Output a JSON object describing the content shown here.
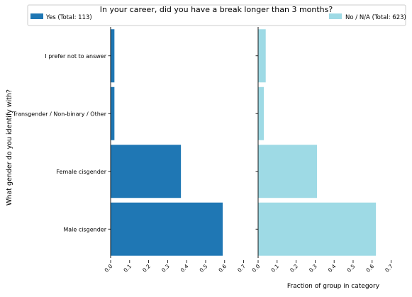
{
  "chart_data": {
    "type": "bar",
    "orientation": "horizontal",
    "title": "In your career, did you have a break longer than 3 months?",
    "ylabel": "What gender do you identify with?",
    "xlabel": "Fraction of group in category",
    "categories": [
      "Male cisgender",
      "Female cisgender",
      "Transgender / Non-binary / Other",
      "I prefer not to answer"
    ],
    "xlim": [
      0,
      0.78
    ],
    "xticks": [
      "0.0",
      "0.1",
      "0.2",
      "0.3",
      "0.4",
      "0.5",
      "0.6",
      "0.7"
    ],
    "tick_values": [
      0,
      0.1,
      0.2,
      0.3,
      0.4,
      0.5,
      0.6,
      0.7
    ],
    "legend_position": "top",
    "panels": [
      {
        "name": "Yes (Total: 113)",
        "color": "#1f77b4",
        "values": [
          0.59,
          0.37,
          0.02,
          0.02
        ]
      },
      {
        "name": "No / N/A (Total: 623)",
        "color": "#9edae5",
        "values": [
          0.62,
          0.31,
          0.03,
          0.04
        ]
      }
    ]
  }
}
